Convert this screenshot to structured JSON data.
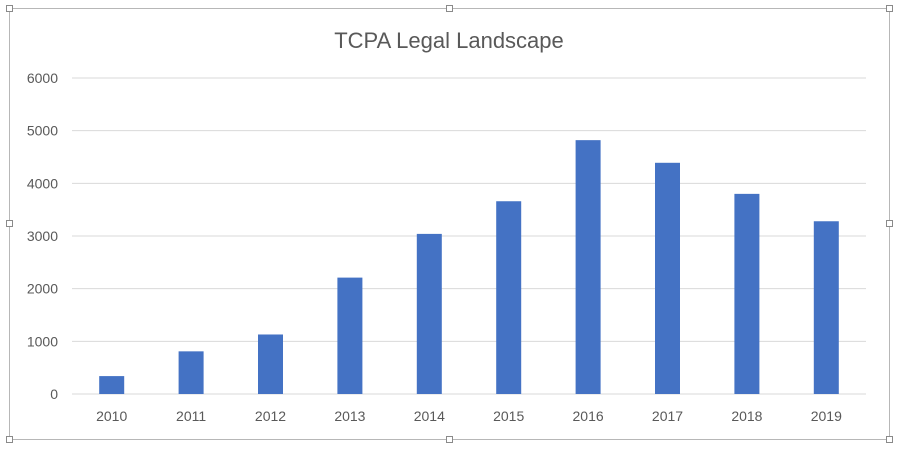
{
  "chart_data": {
    "type": "bar",
    "title": "TCPA Legal Landscape",
    "xlabel": "",
    "ylabel": "",
    "categories": [
      "2010",
      "2011",
      "2012",
      "2013",
      "2014",
      "2015",
      "2016",
      "2017",
      "2018",
      "2019"
    ],
    "values": [
      340,
      810,
      1130,
      2210,
      3040,
      3660,
      4820,
      4390,
      3800,
      3280
    ],
    "ylim": [
      0,
      6000
    ],
    "yticks": [
      "0",
      "1000",
      "2000",
      "3000",
      "4000",
      "5000",
      "6000"
    ],
    "grid": true,
    "legend": "none",
    "bar_color": "#4472c4",
    "grid_color": "#d9d9d9"
  }
}
